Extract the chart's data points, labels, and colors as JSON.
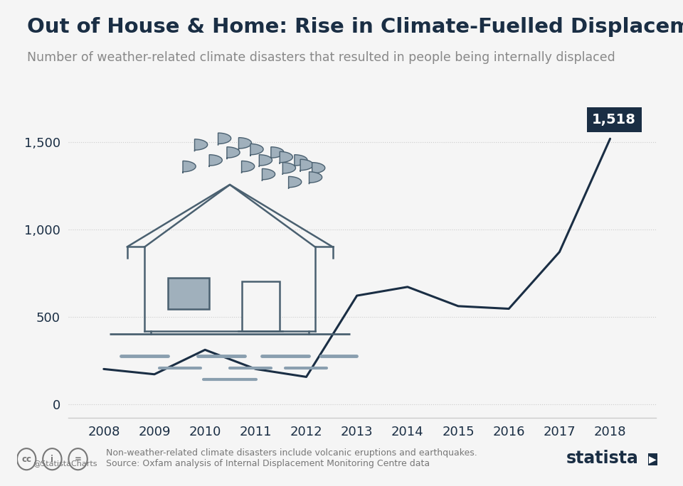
{
  "title": "Out of House & Home: Rise in Climate-Fuelled Displacement",
  "subtitle": "Number of weather-related climate disasters that resulted in people being internally displaced",
  "years": [
    2008,
    2009,
    2010,
    2011,
    2012,
    2013,
    2014,
    2015,
    2016,
    2017,
    2018
  ],
  "values": [
    200,
    170,
    310,
    200,
    155,
    620,
    670,
    560,
    545,
    870,
    1518
  ],
  "line_color": "#1a2e44",
  "bg_color": "#f5f5f5",
  "grid_color": "#cccccc",
  "annotation_value": "1,518",
  "annotation_box_color": "#1a2e44",
  "annotation_text_color": "#ffffff",
  "ylabel_ticks": [
    0,
    500,
    1000,
    1500
  ],
  "ylabel_labels": [
    "0",
    "500",
    "1,000",
    "1,500"
  ],
  "footer_note1": "Non-weather-related climate disasters include volcanic eruptions and earthquakes.",
  "footer_note2": "Source: Oxfam analysis of Internal Displacement Monitoring Centre data",
  "footer_left": "@StatistaCharts",
  "title_color": "#1a2e44",
  "subtitle_color": "#888888",
  "axis_color": "#1a2e44",
  "house_edge": "#4a6070",
  "house_fill": "#f5f5f5",
  "win_fill": "#a0b0bc",
  "drop_fill": "#a0b0bc",
  "drop_edge": "#4a6070",
  "ground_color": "#6a7f8f",
  "road_color": "#8a9faf"
}
